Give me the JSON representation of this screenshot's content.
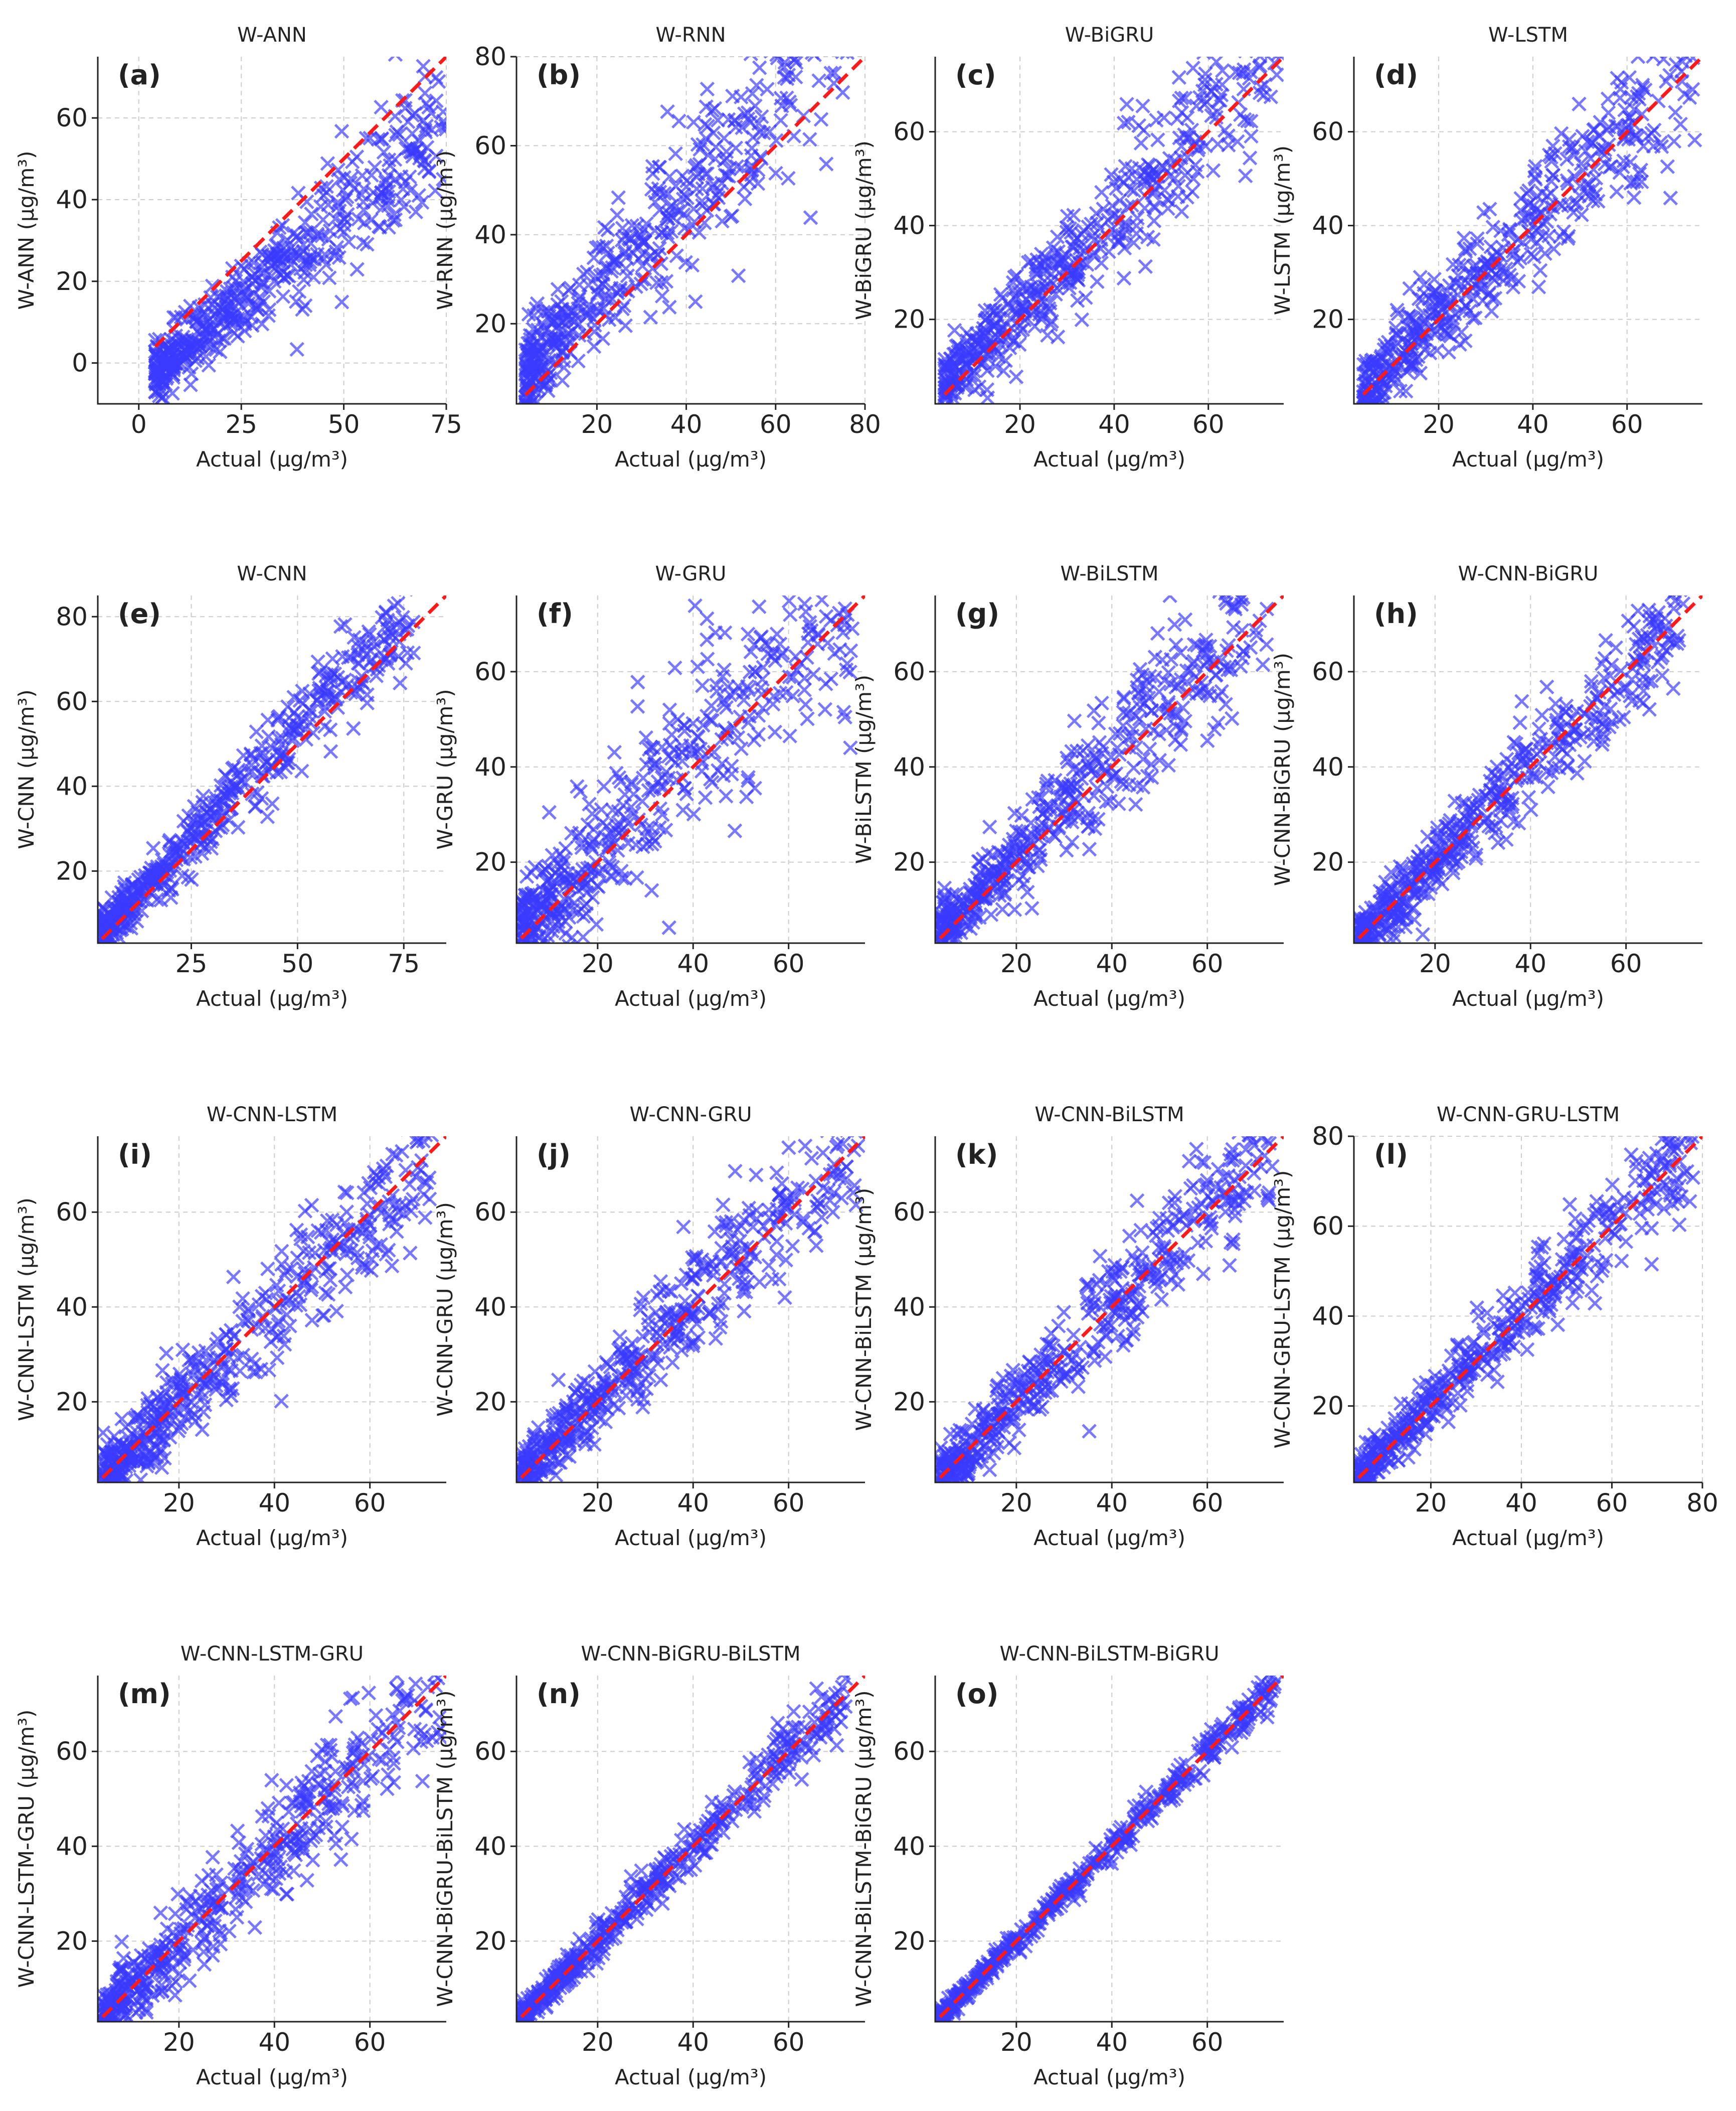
{
  "figure": {
    "xlabel": "Actual (μg/m³)"
  },
  "panels": [
    {
      "id": "a",
      "label": "(a)",
      "title": "W-ANN",
      "ylabel": "W-ANN (μg/m³)"
    },
    {
      "id": "b",
      "label": "(b)",
      "title": "W-RNN",
      "ylabel": "W-RNN (μg/m³)"
    },
    {
      "id": "c",
      "label": "(c)",
      "title": "W-BiGRU",
      "ylabel": "W-BiGRU (μg/m³)"
    },
    {
      "id": "d",
      "label": "(d)",
      "title": "W-LSTM",
      "ylabel": "W-LSTM (μg/m³)"
    },
    {
      "id": "e",
      "label": "(e)",
      "title": "W-CNN",
      "ylabel": "W-CNN (μg/m³)"
    },
    {
      "id": "f",
      "label": "(f)",
      "title": "W-GRU",
      "ylabel": "W-GRU (μg/m³)"
    },
    {
      "id": "g",
      "label": "(g)",
      "title": "W-BiLSTM",
      "ylabel": "W-BiLSTM (μg/m³)"
    },
    {
      "id": "h",
      "label": "(h)",
      "title": "W-CNN-BiGRU",
      "ylabel": "W-CNN-BiGRU (μg/m³)"
    },
    {
      "id": "i",
      "label": "(i)",
      "title": "W-CNN-LSTM",
      "ylabel": "W-CNN-LSTM (μg/m³)"
    },
    {
      "id": "j",
      "label": "(j)",
      "title": "W-CNN-GRU",
      "ylabel": "W-CNN-GRU (μg/m³)"
    },
    {
      "id": "k",
      "label": "(k)",
      "title": "W-CNN-BiLSTM",
      "ylabel": "W-CNN-BiLSTM (μg/m³)"
    },
    {
      "id": "l",
      "label": "(l)",
      "title": "W-CNN-GRU-LSTM",
      "ylabel": "W-CNN-GRU-LSTM (μg/m³)"
    },
    {
      "id": "m",
      "label": "(m)",
      "title": "W-CNN-LSTM-GRU",
      "ylabel": "W-CNN-LSTM-GRU (μg/m³)"
    },
    {
      "id": "n",
      "label": "(n)",
      "title": "W-CNN-BiGRU-BiLSTM",
      "ylabel": "W-CNN-BiGRU-BiLSTM (μg/m³)"
    },
    {
      "id": "o",
      "label": "(o)",
      "title": "W-CNN-BiLSTM-BiGRU",
      "ylabel": "W-CNN-BiLSTM-BiGRU (μg/m³)"
    }
  ],
  "chart_data": [
    {
      "type": "scatter",
      "title": "W-ANN",
      "xlabel": "Actual (μg/m³)",
      "ylabel": "W-ANN (μg/m³)",
      "xlim": [
        -10,
        75
      ],
      "ylim": [
        -10,
        75
      ],
      "xticks": [
        0,
        25,
        50,
        75
      ],
      "yticks": [
        0,
        20,
        40,
        60
      ],
      "reference_line": "y = x",
      "n_points": 500,
      "seed": 11,
      "bias": -12,
      "noise": 5.0,
      "actual_range": [
        4,
        75
      ],
      "grid": true
    },
    {
      "type": "scatter",
      "title": "W-RNN",
      "xlabel": "Actual (μg/m³)",
      "ylabel": "W-RNN (μg/m³)",
      "xlim": [
        2,
        80
      ],
      "ylim": [
        2,
        80
      ],
      "xticks": [
        20,
        40,
        60,
        80
      ],
      "yticks": [
        20,
        40,
        60,
        80
      ],
      "reference_line": "y = x",
      "n_points": 500,
      "seed": 23,
      "bias": 8,
      "noise": 7.0,
      "actual_range": [
        4,
        78
      ],
      "grid": true
    },
    {
      "type": "scatter",
      "title": "W-BiGRU",
      "xlabel": "Actual (μg/m³)",
      "ylabel": "W-BiGRU (μg/m³)",
      "xlim": [
        2,
        76
      ],
      "ylim": [
        2,
        76
      ],
      "xticks": [
        20,
        40,
        60
      ],
      "yticks": [
        20,
        40,
        60
      ],
      "reference_line": "y = x",
      "n_points": 500,
      "seed": 37,
      "bias": 3,
      "noise": 5.0,
      "actual_range": [
        4,
        75
      ],
      "grid": true
    },
    {
      "type": "scatter",
      "title": "W-LSTM",
      "xlabel": "Actual (μg/m³)",
      "ylabel": "W-LSTM (μg/m³)",
      "xlim": [
        2,
        76
      ],
      "ylim": [
        2,
        76
      ],
      "xticks": [
        20,
        40,
        60
      ],
      "yticks": [
        20,
        40,
        60
      ],
      "reference_line": "y = x",
      "n_points": 500,
      "seed": 41,
      "bias": 1,
      "noise": 5.5,
      "actual_range": [
        4,
        75
      ],
      "grid": true
    },
    {
      "type": "scatter",
      "title": "W-CNN",
      "xlabel": "Actual (μg/m³)",
      "ylabel": "W-CNN (μg/m³)",
      "xlim": [
        3,
        85
      ],
      "ylim": [
        3,
        85
      ],
      "xticks": [
        25,
        50,
        75
      ],
      "yticks": [
        20,
        40,
        60,
        80
      ],
      "reference_line": "y = x",
      "n_points": 500,
      "seed": 53,
      "bias": 3,
      "noise": 3.5,
      "actual_range": [
        4,
        78
      ],
      "grid": true
    },
    {
      "type": "scatter",
      "title": "W-GRU",
      "xlabel": "Actual (μg/m³)",
      "ylabel": "W-GRU (μg/m³)",
      "xlim": [
        3,
        76
      ],
      "ylim": [
        3,
        76
      ],
      "xticks": [
        20,
        40,
        60
      ],
      "yticks": [
        20,
        40,
        60
      ],
      "reference_line": "y = x",
      "n_points": 500,
      "seed": 67,
      "bias": 3,
      "noise": 7.5,
      "actual_range": [
        4,
        74
      ],
      "grid": true
    },
    {
      "type": "scatter",
      "title": "W-BiLSTM",
      "xlabel": "Actual (μg/m³)",
      "ylabel": "W-BiLSTM (μg/m³)",
      "xlim": [
        3,
        76
      ],
      "ylim": [
        3,
        76
      ],
      "xticks": [
        20,
        40,
        60
      ],
      "yticks": [
        20,
        40,
        60
      ],
      "reference_line": "y = x",
      "n_points": 500,
      "seed": 71,
      "bias": 2,
      "noise": 5.0,
      "actual_range": [
        4,
        74
      ],
      "grid": true
    },
    {
      "type": "scatter",
      "title": "W-CNN-BiGRU",
      "xlabel": "Actual (μg/m³)",
      "ylabel": "W-CNN-BiGRU (μg/m³)",
      "xlim": [
        3,
        76
      ],
      "ylim": [
        3,
        76
      ],
      "xticks": [
        20,
        40,
        60
      ],
      "yticks": [
        20,
        40,
        60
      ],
      "reference_line": "y = x",
      "n_points": 500,
      "seed": 83,
      "bias": 0,
      "noise": 4.0,
      "actual_range": [
        4,
        72
      ],
      "grid": true
    },
    {
      "type": "scatter",
      "title": "W-CNN-LSTM",
      "xlabel": "Actual (μg/m³)",
      "ylabel": "W-CNN-LSTM (μg/m³)",
      "xlim": [
        3,
        76
      ],
      "ylim": [
        3,
        76
      ],
      "xticks": [
        20,
        40,
        60
      ],
      "yticks": [
        20,
        40,
        60
      ],
      "reference_line": "y = x",
      "n_points": 500,
      "seed": 97,
      "bias": -1,
      "noise": 4.5,
      "actual_range": [
        4,
        75
      ],
      "grid": true
    },
    {
      "type": "scatter",
      "title": "W-CNN-GRU",
      "xlabel": "Actual (μg/m³)",
      "ylabel": "W-CNN-GRU (μg/m³)",
      "xlim": [
        3,
        76
      ],
      "ylim": [
        3,
        76
      ],
      "xticks": [
        20,
        40,
        60
      ],
      "yticks": [
        20,
        40,
        60
      ],
      "reference_line": "y = x",
      "n_points": 500,
      "seed": 101,
      "bias": 1,
      "noise": 4.5,
      "actual_range": [
        4,
        75
      ],
      "grid": true
    },
    {
      "type": "scatter",
      "title": "W-CNN-BiLSTM",
      "xlabel": "Actual (μg/m³)",
      "ylabel": "W-CNN-BiLSTM (μg/m³)",
      "xlim": [
        3,
        76
      ],
      "ylim": [
        3,
        76
      ],
      "xticks": [
        20,
        40,
        60
      ],
      "yticks": [
        20,
        40,
        60
      ],
      "reference_line": "y = x",
      "n_points": 500,
      "seed": 113,
      "bias": 0,
      "noise": 4.5,
      "actual_range": [
        4,
        74
      ],
      "grid": true
    },
    {
      "type": "scatter",
      "title": "W-CNN-GRU-LSTM",
      "xlabel": "Actual (μg/m³)",
      "ylabel": "W-CNN-GRU-LSTM (μg/m³)",
      "xlim": [
        3,
        80
      ],
      "ylim": [
        3,
        80
      ],
      "xticks": [
        20,
        40,
        60,
        80
      ],
      "yticks": [
        20,
        40,
        60,
        80
      ],
      "reference_line": "y = x",
      "n_points": 500,
      "seed": 127,
      "bias": 1,
      "noise": 3.5,
      "actual_range": [
        4,
        78
      ],
      "grid": true
    },
    {
      "type": "scatter",
      "title": "W-CNN-LSTM-GRU",
      "xlabel": "Actual (μg/m³)",
      "ylabel": "W-CNN-LSTM-GRU (μg/m³)",
      "xlim": [
        3,
        76
      ],
      "ylim": [
        3,
        76
      ],
      "xticks": [
        20,
        40,
        60
      ],
      "yticks": [
        20,
        40,
        60
      ],
      "reference_line": "y = x",
      "n_points": 500,
      "seed": 131,
      "bias": 0,
      "noise": 4.5,
      "actual_range": [
        4,
        75
      ],
      "grid": true
    },
    {
      "type": "scatter",
      "title": "W-CNN-BiGRU-BiLSTM",
      "xlabel": "Actual (μg/m³)",
      "ylabel": "W-CNN-BiGRU-BiLSTM (μg/m³)",
      "xlim": [
        3,
        76
      ],
      "ylim": [
        3,
        76
      ],
      "xticks": [
        20,
        40,
        60
      ],
      "yticks": [
        20,
        40,
        60
      ],
      "reference_line": "y = x",
      "n_points": 500,
      "seed": 149,
      "bias": 0,
      "noise": 2.0,
      "actual_range": [
        4,
        72
      ],
      "grid": true
    },
    {
      "type": "scatter",
      "title": "W-CNN-BiLSTM-BiGRU",
      "xlabel": "Actual (μg/m³)",
      "ylabel": "W-CNN-BiLSTM-BiGRU (μg/m³)",
      "xlim": [
        3,
        76
      ],
      "ylim": [
        3,
        76
      ],
      "xticks": [
        20,
        40,
        60
      ],
      "yticks": [
        20,
        40,
        60
      ],
      "reference_line": "y = x",
      "n_points": 500,
      "seed": 151,
      "bias": 0,
      "noise": 1.2,
      "actual_range": [
        4,
        75
      ],
      "grid": true
    }
  ]
}
